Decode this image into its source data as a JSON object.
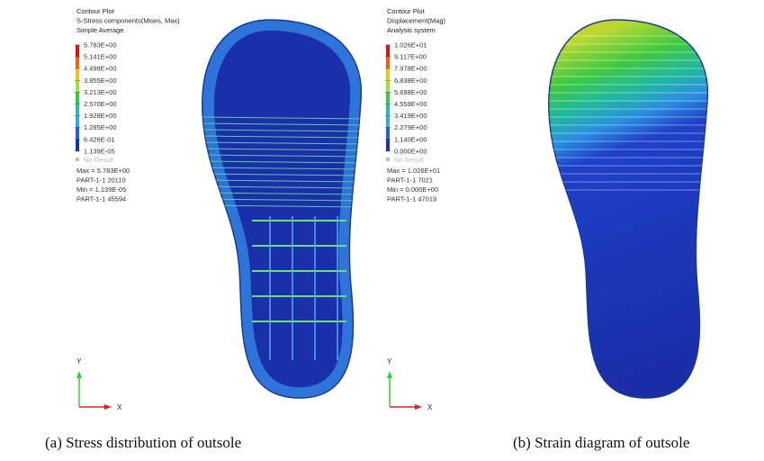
{
  "panels": [
    {
      "header": [
        "Contour Plot",
        "S-Stress components(Mises, Max)",
        "Simple Average"
      ],
      "legend": [
        "5.783E+00",
        "5.141E+00",
        "4.498E+00",
        "3.855E+00",
        "3.213E+00",
        "2.570E+00",
        "1.928E+00",
        "1.285E+00",
        "6.426E-01",
        "1.139E-05"
      ],
      "no_result": "No Result",
      "info": [
        "Max = 5.783E+00",
        "PART-1-1 20110",
        "Min = 1.139E-05",
        "PART-1-1 45594"
      ],
      "axis": {
        "x": "X",
        "y": "Y"
      },
      "caption": "(a)  Stress distribution of outsole"
    },
    {
      "header": [
        "Contour Plot",
        "Displacement(Mag)",
        "Analysis system"
      ],
      "legend": [
        "1.026E+01",
        "9.117E+00",
        "7.978E+00",
        "6.838E+00",
        "5.698E+00",
        "4.559E+00",
        "3.419E+00",
        "2.279E+00",
        "1.140E+00",
        "0.000E+00"
      ],
      "no_result": "No Result",
      "info": [
        "Max = 1.026E+01",
        "PART-1-1 7021",
        "Min = 0.000E+00",
        "PART-1-1 47019"
      ],
      "axis": {
        "x": "X",
        "y": "Y"
      },
      "caption": "(b) Strain diagram of outsole"
    }
  ]
}
